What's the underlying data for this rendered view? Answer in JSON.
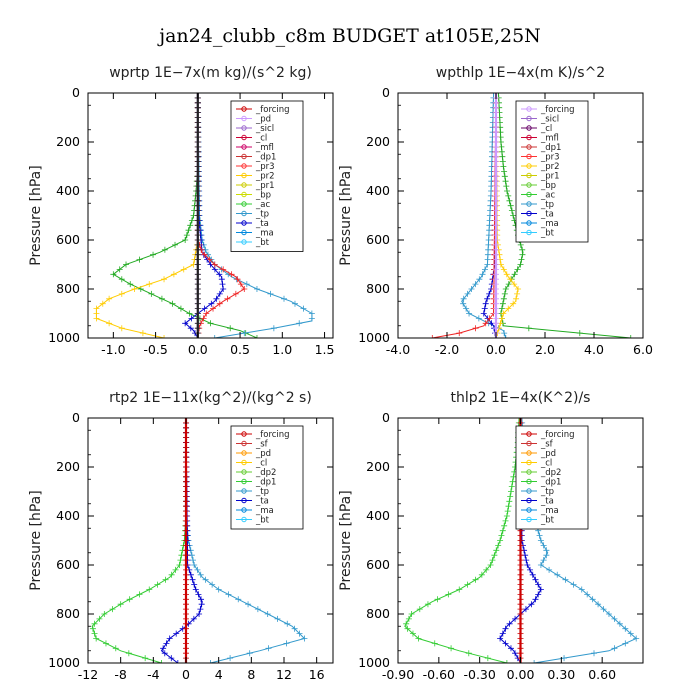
{
  "suptitle": "jan24_clubb_c8m  BUDGET at105E,25N",
  "chart_data": [
    {
      "type": "line",
      "title": "wprtp   1E−7x(m kg)/(s^2 kg)",
      "ylabel": "Pressure [hPa]",
      "ylim": [
        0,
        1000
      ],
      "y_inverted": true,
      "xlim": [
        -1.3,
        1.6
      ],
      "xticks": [
        -1.0,
        -0.5,
        0.0,
        0.5,
        1.0,
        1.5
      ],
      "xtick_labels": [
        "-1.0",
        "-0.5",
        "0.0",
        "0.5",
        "1.0",
        "1.5"
      ],
      "yticks": [
        0,
        200,
        400,
        600,
        800,
        1000
      ],
      "legend": [
        "_forcing",
        "_pd",
        "_sicl",
        "_cl",
        "_mfl",
        "_dp1",
        "_pr3",
        "_pr2",
        "_pr1",
        "_bp",
        "_ac",
        "_tp",
        "_ta",
        "_ma",
        "_bt"
      ],
      "legend_colors": [
        "#cc0000",
        "#cc99ff",
        "#9966cc",
        "#cc0033",
        "#cc0066",
        "#cc3333",
        "#ff3333",
        "#ffcc00",
        "#cccc00",
        "#ccdd00",
        "#33cc33",
        "#3399cc",
        "#0000cc",
        "#0088dd",
        "#33ccff"
      ],
      "series": [
        {
          "name": "_ac",
          "color": "#22aa22",
          "y": [
            0,
            100,
            200,
            300,
            400,
            500,
            600,
            650,
            700,
            740,
            780,
            820,
            860,
            900,
            940,
            970,
            1000
          ],
          "x": [
            0,
            0,
            0,
            0,
            -0.02,
            -0.05,
            -0.15,
            -0.45,
            -0.85,
            -1.0,
            -0.8,
            -0.55,
            -0.3,
            -0.1,
            0.15,
            0.5,
            0.7
          ]
        },
        {
          "name": "_bp",
          "color": "#ffcc00",
          "y": [
            0,
            600,
            700,
            760,
            800,
            840,
            880,
            920,
            960,
            1000
          ],
          "x": [
            0,
            0,
            -0.05,
            -0.4,
            -0.75,
            -1.05,
            -1.2,
            -1.2,
            -0.9,
            -0.4
          ]
        },
        {
          "name": "_tp",
          "color": "#3399cc",
          "y": [
            0,
            500,
            600,
            650,
            700,
            750,
            800,
            850,
            900,
            930,
            960,
            1000
          ],
          "x": [
            0,
            0.02,
            0.05,
            0.1,
            0.2,
            0.4,
            0.7,
            1.1,
            1.35,
            1.35,
            0.9,
            0.2
          ]
        },
        {
          "name": "_ta",
          "color": "#0000cc",
          "y": [
            0,
            500,
            650,
            700,
            750,
            800,
            850,
            900,
            940,
            970,
            1000
          ],
          "x": [
            0,
            0.01,
            0.05,
            0.15,
            0.28,
            0.3,
            0.2,
            0.0,
            -0.15,
            -0.05,
            0.0
          ]
        },
        {
          "name": "_dp1",
          "color": "#ee2222",
          "y": [
            0,
            600,
            650,
            700,
            750,
            800,
            850,
            900,
            950,
            1000
          ],
          "x": [
            0,
            0,
            0.05,
            0.2,
            0.45,
            0.55,
            0.3,
            0.1,
            0.02,
            0
          ]
        },
        {
          "name": "_pd",
          "color": "#cc99ff",
          "y": [
            0,
            1000
          ],
          "x": [
            0.0,
            0.0
          ]
        },
        {
          "name": "_forcing",
          "color": "#222222",
          "y": [
            0,
            1000
          ],
          "x": [
            0.0,
            0.0
          ]
        }
      ]
    },
    {
      "type": "line",
      "title": "wpthlp   1E−4x(m K)/s^2",
      "ylabel": "Pressure [hPa]",
      "ylim": [
        0,
        1000
      ],
      "y_inverted": true,
      "xlim": [
        -4.0,
        6.0
      ],
      "xticks": [
        -4.0,
        -2.0,
        0.0,
        2.0,
        4.0,
        6.0
      ],
      "xtick_labels": [
        "-4.0",
        "-2.0",
        "0.0",
        "2.0",
        "4.0",
        "6.0"
      ],
      "yticks": [
        0,
        200,
        400,
        600,
        800,
        1000
      ],
      "legend": [
        "_forcing",
        "_sicl",
        "_cl",
        "_mfl",
        "_dp1",
        "_pr3",
        "_pr2",
        "_pr1",
        "_bp",
        "_ac",
        "_tp",
        "_ta",
        "_ma",
        "_bt"
      ],
      "legend_colors": [
        "#cc99ff",
        "#9966cc",
        "#660066",
        "#cc0033",
        "#cc3333",
        "#ff3333",
        "#ffcc00",
        "#cccc00",
        "#66cc33",
        "#33cc33",
        "#3399cc",
        "#0000cc",
        "#0088dd",
        "#33ccff"
      ],
      "series": [
        {
          "name": "_ac",
          "color": "#22aa22",
          "y": [
            0,
            100,
            200,
            300,
            400,
            500,
            600,
            650,
            700,
            750,
            800,
            850,
            900,
            950,
            1000
          ],
          "x": [
            0.1,
            0.15,
            0.2,
            0.3,
            0.45,
            0.7,
            0.95,
            1.1,
            1.0,
            0.7,
            0.4,
            0.3,
            0.2,
            0.3,
            5.5
          ]
        },
        {
          "name": "_tp",
          "color": "#3399cc",
          "y": [
            0,
            200,
            400,
            600,
            700,
            750,
            800,
            850,
            900,
            940,
            970,
            1000
          ],
          "x": [
            -0.1,
            -0.15,
            -0.2,
            -0.3,
            -0.35,
            -0.6,
            -1.0,
            -1.4,
            -1.1,
            -0.3,
            0.3,
            0.4
          ]
        },
        {
          "name": "_ta",
          "color": "#0000cc",
          "y": [
            0,
            700,
            800,
            850,
            900,
            950,
            1000
          ],
          "x": [
            0,
            -0.05,
            -0.2,
            -0.4,
            -0.5,
            -0.1,
            0
          ]
        },
        {
          "name": "_pr2",
          "color": "#ffcc00",
          "y": [
            0,
            600,
            700,
            750,
            800,
            850,
            900,
            1000
          ],
          "x": [
            0,
            0.05,
            0.2,
            0.5,
            0.9,
            0.8,
            0.3,
            0
          ]
        },
        {
          "name": "_dp1",
          "color": "#ee2222",
          "y": [
            0,
            900,
            950,
            980,
            1000
          ],
          "x": [
            0,
            -0.1,
            -0.5,
            -1.5,
            -2.6
          ]
        },
        {
          "name": "_forcing",
          "color": "#cc99ff",
          "y": [
            0,
            1000
          ],
          "x": [
            0.0,
            0.0
          ]
        }
      ]
    },
    {
      "type": "line",
      "title": "rtp2   1E−11x(kg^2)/(kg^2 s)",
      "ylabel": "Pressure [hPa]",
      "ylim": [
        0,
        1000
      ],
      "y_inverted": true,
      "xlim": [
        -12,
        18
      ],
      "xticks": [
        -12,
        -8,
        -4,
        0,
        4,
        8,
        12,
        16
      ],
      "xtick_labels": [
        "-12",
        "-8",
        "-4",
        "0",
        "4",
        "8",
        "12",
        "16"
      ],
      "yticks": [
        0,
        200,
        400,
        600,
        800,
        1000
      ],
      "legend": [
        "_forcing",
        "_sf",
        "_pd",
        "_cl",
        "_dp2",
        "_dp1",
        "_tp",
        "_ta",
        "_ma",
        "_bt"
      ],
      "legend_colors": [
        "#cc0000",
        "#cc3333",
        "#ff9900",
        "#ffcc00",
        "#66cc33",
        "#33cc33",
        "#3399cc",
        "#0000cc",
        "#0088dd",
        "#33ccff"
      ],
      "series": [
        {
          "name": "_dp1",
          "color": "#33cc33",
          "y": [
            0,
            400,
            500,
            600,
            650,
            700,
            750,
            800,
            850,
            900,
            950,
            1000
          ],
          "x": [
            0,
            0,
            -0.2,
            -0.8,
            -2.0,
            -4.5,
            -7.5,
            -10.0,
            -11.5,
            -11.0,
            -8.0,
            -3.0
          ]
        },
        {
          "name": "_tp",
          "color": "#3399cc",
          "y": [
            0,
            400,
            500,
            600,
            650,
            700,
            750,
            800,
            850,
            900,
            950,
            1000
          ],
          "x": [
            0,
            0,
            0.3,
            1.0,
            2.0,
            4.0,
            7.0,
            10.0,
            13.0,
            14.5,
            9.0,
            3.0
          ]
        },
        {
          "name": "_ta",
          "color": "#0000cc",
          "y": [
            0,
            600,
            700,
            750,
            800,
            850,
            900,
            950,
            1000
          ],
          "x": [
            0,
            0.2,
            1.2,
            2.0,
            1.6,
            0,
            -2.0,
            -3.0,
            -1.0
          ]
        },
        {
          "name": "_forcing",
          "color": "#cc0000",
          "y": [
            0,
            1000
          ],
          "x": [
            0,
            0
          ]
        }
      ]
    },
    {
      "type": "line",
      "title": "thlp2   1E−4x(K^2)/s",
      "ylabel": "Pressure [hPa]",
      "ylim": [
        0,
        1000
      ],
      "y_inverted": true,
      "xlim": [
        -0.9,
        0.9
      ],
      "xticks": [
        -0.9,
        -0.6,
        -0.3,
        0.0,
        0.3,
        0.6
      ],
      "xtick_labels": [
        "-0.90",
        "-0.60",
        "-0.30",
        "0.00",
        "0.30",
        "0.60"
      ],
      "yticks": [
        0,
        200,
        400,
        600,
        800,
        1000
      ],
      "legend": [
        "_forcing",
        "_sf",
        "_pd",
        "_cl",
        "_dp2",
        "_dp1",
        "_tp",
        "_ta",
        "_ma",
        "_bt"
      ],
      "legend_colors": [
        "#cc0000",
        "#cc3333",
        "#ff9900",
        "#ffcc00",
        "#66cc33",
        "#33cc33",
        "#3399cc",
        "#0000cc",
        "#0088dd",
        "#33ccff"
      ],
      "series": [
        {
          "name": "_dp1",
          "color": "#33cc33",
          "y": [
            0,
            100,
            200,
            300,
            400,
            500,
            600,
            650,
            700,
            750,
            800,
            850,
            900,
            950,
            1000
          ],
          "x": [
            -0.01,
            -0.02,
            -0.04,
            -0.07,
            -0.1,
            -0.15,
            -0.22,
            -0.3,
            -0.45,
            -0.65,
            -0.8,
            -0.85,
            -0.75,
            -0.45,
            -0.1
          ]
        },
        {
          "name": "_tp",
          "color": "#3399cc",
          "y": [
            0,
            100,
            200,
            300,
            400,
            500,
            550,
            600,
            650,
            700,
            750,
            800,
            850,
            900,
            950,
            1000
          ],
          "x": [
            0.01,
            0.02,
            0.05,
            0.08,
            0.1,
            0.15,
            0.2,
            0.15,
            0.3,
            0.45,
            0.55,
            0.65,
            0.75,
            0.85,
            0.65,
            0.1
          ]
        },
        {
          "name": "_ta",
          "color": "#0000cc",
          "y": [
            0,
            500,
            600,
            650,
            700,
            750,
            800,
            850,
            900,
            950,
            1000
          ],
          "x": [
            0,
            0.01,
            0.05,
            0.1,
            0.15,
            0.1,
            0,
            -0.1,
            -0.15,
            -0.05,
            0
          ]
        },
        {
          "name": "_forcing",
          "color": "#cc0000",
          "y": [
            0,
            1000
          ],
          "x": [
            0,
            0
          ]
        }
      ]
    }
  ]
}
